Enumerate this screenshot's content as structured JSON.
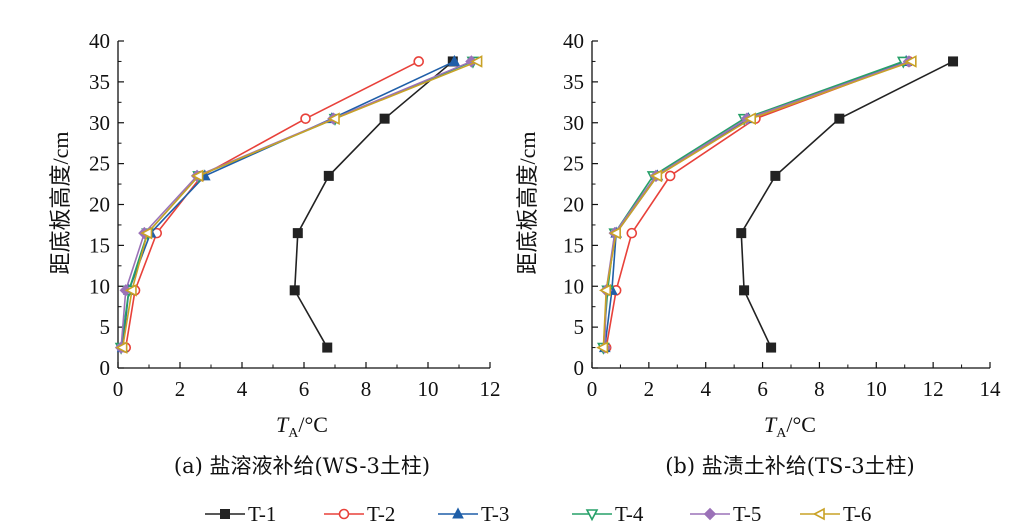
{
  "chart_data": [
    {
      "type": "line",
      "caption": "(a) 盐溶液补给(WS-3土柱)",
      "xlabel_main": "T",
      "xlabel_sub": "A",
      "xlabel_unit": "/°C",
      "ylabel": "距底板高度/cm",
      "xlim": [
        0,
        12
      ],
      "ylim": [
        0,
        40
      ],
      "xticks": [
        0,
        2,
        4,
        6,
        8,
        10,
        12
      ],
      "yticks": [
        0,
        5,
        10,
        15,
        20,
        25,
        30,
        35,
        40
      ],
      "y": [
        2.5,
        9.5,
        16.5,
        23.5,
        30.5,
        37.5
      ],
      "series": [
        {
          "name": "T-1",
          "x": [
            6.75,
            5.7,
            5.8,
            6.8,
            8.6,
            10.8
          ]
        },
        {
          "name": "T-2",
          "x": [
            0.25,
            0.55,
            1.25,
            2.7,
            6.05,
            9.7
          ]
        },
        {
          "name": "T-3",
          "x": [
            0.15,
            0.35,
            1.05,
            2.8,
            6.9,
            10.85
          ]
        },
        {
          "name": "T-4",
          "x": [
            0.1,
            0.35,
            0.95,
            2.6,
            7.0,
            11.45
          ]
        },
        {
          "name": "T-5",
          "x": [
            0.1,
            0.25,
            0.85,
            2.55,
            6.95,
            11.4
          ]
        },
        {
          "name": "T-6",
          "x": [
            0.15,
            0.45,
            0.95,
            2.6,
            7.0,
            11.6
          ]
        }
      ]
    },
    {
      "type": "line",
      "caption": "(b) 盐渍土补给(TS-3土柱)",
      "xlabel_main": "T",
      "xlabel_sub": "A",
      "xlabel_unit": "/°C",
      "ylabel": "距底板高度/cm",
      "xlim": [
        0,
        14
      ],
      "ylim": [
        0,
        40
      ],
      "xticks": [
        0,
        2,
        4,
        6,
        8,
        10,
        12,
        14
      ],
      "yticks": [
        0,
        5,
        10,
        15,
        20,
        25,
        30,
        35,
        40
      ],
      "y": [
        2.5,
        9.5,
        16.5,
        23.5,
        30.5,
        37.5
      ],
      "series": [
        {
          "name": "T-1",
          "x": [
            6.3,
            5.35,
            5.25,
            6.45,
            8.7,
            12.7
          ]
        },
        {
          "name": "T-2",
          "x": [
            0.5,
            0.85,
            1.4,
            2.75,
            5.75,
            11.15
          ]
        },
        {
          "name": "T-3",
          "x": [
            0.45,
            0.7,
            0.85,
            2.3,
            5.5,
            11.05
          ]
        },
        {
          "name": "T-4",
          "x": [
            0.4,
            0.55,
            0.8,
            2.15,
            5.35,
            10.95
          ]
        },
        {
          "name": "T-5",
          "x": [
            0.45,
            0.5,
            0.8,
            2.25,
            5.45,
            11.15
          ]
        },
        {
          "name": "T-6",
          "x": [
            0.4,
            0.5,
            0.85,
            2.3,
            5.6,
            11.25
          ]
        }
      ]
    }
  ],
  "legend": {
    "position": "bottom-center",
    "entries": [
      {
        "name": "T-1",
        "marker": "square-filled",
        "color": "#222222"
      },
      {
        "name": "T-2",
        "marker": "circle-open",
        "color": "#e8413a"
      },
      {
        "name": "T-3",
        "marker": "triangle-up-filled",
        "color": "#1f5fa8"
      },
      {
        "name": "T-4",
        "marker": "triangle-down-open",
        "color": "#27a069"
      },
      {
        "name": "T-5",
        "marker": "diamond-filled",
        "color": "#9b72b8"
      },
      {
        "name": "T-6",
        "marker": "triangle-left-open",
        "color": "#c9a227"
      }
    ]
  }
}
